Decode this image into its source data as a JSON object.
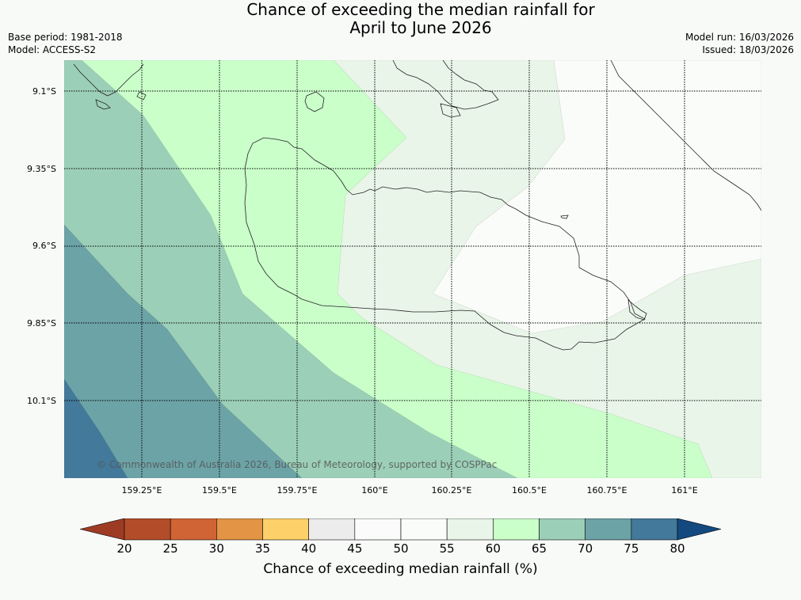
{
  "title": {
    "line1": "Chance of exceeding the median rainfall for",
    "line2": "April to June 2026"
  },
  "meta_left": {
    "base_period": "Base period: 1981-2018",
    "model": "Model: ACCESS-S2"
  },
  "meta_right": {
    "model_run": "Model run: 16/03/2026",
    "issued": "Issued: 18/03/2026"
  },
  "map": {
    "lat_labels": [
      "9.1°S",
      "9.35°S",
      "9.6°S",
      "9.85°S",
      "10.1°S"
    ],
    "lon_labels": [
      "159.25°E",
      "159.5°E",
      "159.75°E",
      "160°E",
      "160.25°E",
      "160.5°E",
      "160.75°E",
      "161°E"
    ],
    "copyright": "© Commonwealth of Australia 2026, Bureau of Meteorology, supported by COSPPac",
    "grid_style": "dotted",
    "zone_colors": {
      "45_55": "#fafcfa",
      "55_60": "#e9f5e8",
      "60_65": "#caffca",
      "65_70": "#9ccfb8",
      "70_75": "#6ca3a7",
      "75_80": "#43799a"
    }
  },
  "colorbar": {
    "ticks": [
      "20",
      "25",
      "30",
      "35",
      "40",
      "45",
      "50",
      "55",
      "60",
      "65",
      "70",
      "75",
      "80"
    ],
    "colors": [
      "#b34d29",
      "#d06434",
      "#e49445",
      "#fed06a",
      "#ececec",
      "#fbfbfb",
      "#fafcfa",
      "#e9f5e8",
      "#caffca",
      "#9ccfb8",
      "#6ca3a7",
      "#43799a"
    ],
    "under_color": "#9e3b25",
    "over_color": "#13497f",
    "label": "Chance of exceeding median rainfall (%)"
  }
}
